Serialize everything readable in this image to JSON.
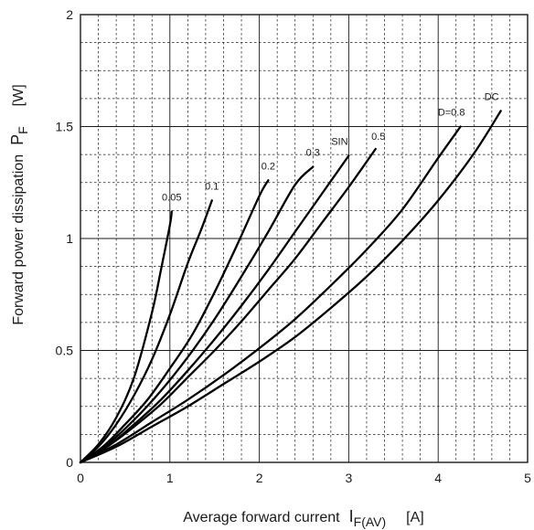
{
  "chart_data": {
    "type": "line",
    "xlabel_main": "Average forward current",
    "xlabel_symbol": "I",
    "xlabel_subscript": "F(AV)",
    "xlabel_unit": "[A]",
    "ylabel_main": "Forward power dissipation",
    "ylabel_symbol": "P",
    "ylabel_subscript": "F",
    "ylabel_unit": "[W]",
    "xlim": [
      0,
      5
    ],
    "ylim": [
      0,
      2
    ],
    "x_ticks": [
      "0",
      "1",
      "2",
      "3",
      "4",
      "5"
    ],
    "y_ticks": [
      "0",
      "0.5",
      "1",
      "1.5",
      "2"
    ],
    "grid": true,
    "series": [
      {
        "name": "0.05",
        "x": [
          0,
          0.2,
          0.4,
          0.6,
          0.8,
          0.9,
          1.0,
          1.02
        ],
        "y": [
          0,
          0.08,
          0.2,
          0.38,
          0.67,
          0.86,
          1.06,
          1.12
        ]
      },
      {
        "name": "0.1",
        "x": [
          0,
          0.2,
          0.4,
          0.6,
          0.8,
          1.0,
          1.2,
          1.35,
          1.47
        ],
        "y": [
          0,
          0.07,
          0.17,
          0.3,
          0.46,
          0.66,
          0.89,
          1.04,
          1.17
        ]
      },
      {
        "name": "0.2",
        "x": [
          0,
          0.25,
          0.5,
          0.75,
          1.0,
          1.25,
          1.5,
          1.75,
          2.0,
          2.1
        ],
        "y": [
          0,
          0.07,
          0.17,
          0.28,
          0.42,
          0.57,
          0.76,
          0.97,
          1.19,
          1.26
        ]
      },
      {
        "name": "0.3",
        "x": [
          0,
          0.3,
          0.6,
          0.9,
          1.2,
          1.5,
          1.8,
          2.1,
          2.4,
          2.6
        ],
        "y": [
          0,
          0.08,
          0.19,
          0.32,
          0.47,
          0.64,
          0.83,
          1.03,
          1.24,
          1.32
        ]
      },
      {
        "name": "SIN",
        "x": [
          0,
          0.3,
          0.6,
          0.9,
          1.2,
          1.5,
          1.8,
          2.1,
          2.4,
          2.7,
          3.0
        ],
        "y": [
          0,
          0.07,
          0.17,
          0.28,
          0.41,
          0.55,
          0.7,
          0.86,
          1.03,
          1.2,
          1.37
        ]
      },
      {
        "name": "0.5",
        "x": [
          0,
          0.3,
          0.6,
          0.9,
          1.2,
          1.5,
          1.8,
          2.1,
          2.4,
          2.7,
          3.0,
          3.3
        ],
        "y": [
          0,
          0.07,
          0.16,
          0.26,
          0.38,
          0.5,
          0.63,
          0.77,
          0.91,
          1.07,
          1.23,
          1.4
        ]
      },
      {
        "name": "D=0.8",
        "x": [
          0,
          0.4,
          0.8,
          1.2,
          1.6,
          2.0,
          2.4,
          2.8,
          3.2,
          3.6,
          4.0,
          4.25
        ],
        "y": [
          0,
          0.08,
          0.18,
          0.28,
          0.39,
          0.51,
          0.64,
          0.79,
          0.95,
          1.13,
          1.36,
          1.5
        ]
      },
      {
        "name": "DC",
        "x": [
          0,
          0.4,
          0.8,
          1.2,
          1.6,
          2.0,
          2.4,
          2.8,
          3.2,
          3.6,
          4.0,
          4.4,
          4.7
        ],
        "y": [
          0,
          0.07,
          0.16,
          0.25,
          0.35,
          0.45,
          0.56,
          0.69,
          0.83,
          0.99,
          1.17,
          1.38,
          1.57
        ]
      }
    ]
  }
}
